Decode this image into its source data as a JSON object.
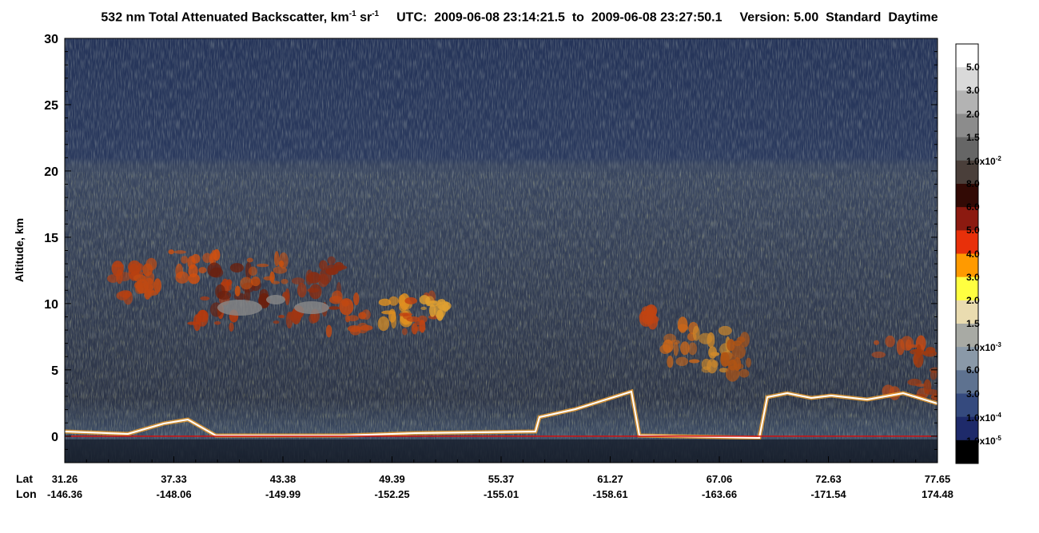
{
  "title": {
    "main": "532 nm Total Attenuated Backscatter, km",
    "unit_exp1": "-1",
    "unit_sr": " sr",
    "unit_exp2": "-1",
    "utc_label": "UTC:",
    "utc_start": "2009-06-08 23:14:21.5",
    "to": "to",
    "utc_end": "2009-06-08 23:27:50.1",
    "version": "Version: 5.00",
    "product": "Standard",
    "time_of_day": "Daytime"
  },
  "chart_data": {
    "type": "heatmap",
    "ylabel": "Altitude, km",
    "ylim": [
      -2,
      30
    ],
    "yticks": [
      0,
      5,
      10,
      15,
      20,
      25,
      30
    ],
    "x_row_labels": [
      "Lat",
      "Lon"
    ],
    "lat_ticks": [
      "31.26",
      "37.33",
      "43.38",
      "49.39",
      "55.37",
      "61.27",
      "67.06",
      "72.63",
      "77.65"
    ],
    "lon_ticks": [
      "-146.36",
      "-148.06",
      "-149.99",
      "-152.25",
      "-155.01",
      "-158.61",
      "-163.66",
      "-171.54",
      "174.48"
    ],
    "colorbar": {
      "labels": [
        {
          "mant": "5.0",
          "exp": ""
        },
        {
          "mant": "3.0",
          "exp": ""
        },
        {
          "mant": "2.0",
          "exp": ""
        },
        {
          "mant": "1.5",
          "exp": ""
        },
        {
          "mant": "1.0x10",
          "exp": "-2"
        },
        {
          "mant": "8.0",
          "exp": ""
        },
        {
          "mant": "6.0",
          "exp": ""
        },
        {
          "mant": "5.0",
          "exp": ""
        },
        {
          "mant": "4.0",
          "exp": ""
        },
        {
          "mant": "3.0",
          "exp": ""
        },
        {
          "mant": "2.0",
          "exp": ""
        },
        {
          "mant": "1.5",
          "exp": ""
        },
        {
          "mant": "1.0x10",
          "exp": "-3"
        },
        {
          "mant": "6.0",
          "exp": ""
        },
        {
          "mant": "3.0",
          "exp": ""
        },
        {
          "mant": "1.0x10",
          "exp": "-4"
        },
        {
          "mant": "1.0x10",
          "exp": "-5"
        }
      ],
      "colors": [
        "#ffffff",
        "#d9d9d9",
        "#b3b3b3",
        "#8c8c8c",
        "#666666",
        "#4a3f3a",
        "#320a05",
        "#8c1a10",
        "#e8300a",
        "#ff9a00",
        "#ffff40",
        "#eadcb0",
        "#a8aaa4",
        "#8a99a8",
        "#5e7290",
        "#354a7e",
        "#1e2a6a",
        "#000000"
      ]
    }
  }
}
